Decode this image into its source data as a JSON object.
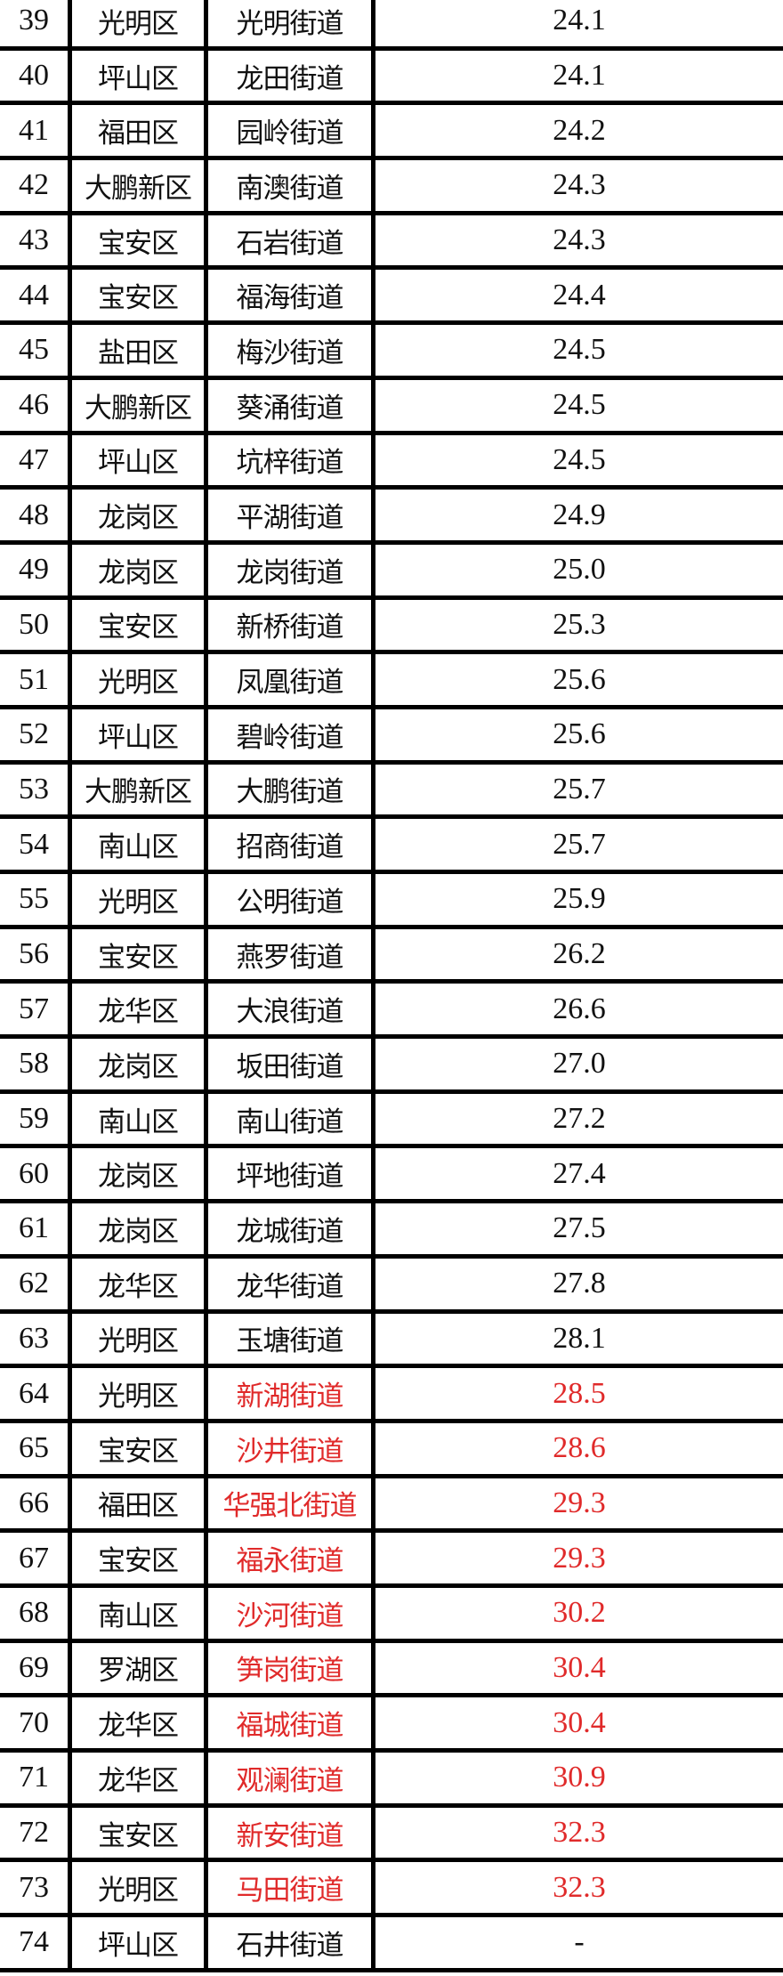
{
  "highlight_color": "#e02a2a",
  "rows": [
    {
      "no": "39",
      "district": "光明区",
      "street": "光明街道",
      "value": "24.1",
      "highlight": false
    },
    {
      "no": "40",
      "district": "坪山区",
      "street": "龙田街道",
      "value": "24.1",
      "highlight": false
    },
    {
      "no": "41",
      "district": "福田区",
      "street": "园岭街道",
      "value": "24.2",
      "highlight": false
    },
    {
      "no": "42",
      "district": "大鹏新区",
      "street": "南澳街道",
      "value": "24.3",
      "highlight": false
    },
    {
      "no": "43",
      "district": "宝安区",
      "street": "石岩街道",
      "value": "24.3",
      "highlight": false
    },
    {
      "no": "44",
      "district": "宝安区",
      "street": "福海街道",
      "value": "24.4",
      "highlight": false
    },
    {
      "no": "45",
      "district": "盐田区",
      "street": "梅沙街道",
      "value": "24.5",
      "highlight": false
    },
    {
      "no": "46",
      "district": "大鹏新区",
      "street": "葵涌街道",
      "value": "24.5",
      "highlight": false
    },
    {
      "no": "47",
      "district": "坪山区",
      "street": "坑梓街道",
      "value": "24.5",
      "highlight": false
    },
    {
      "no": "48",
      "district": "龙岗区",
      "street": "平湖街道",
      "value": "24.9",
      "highlight": false
    },
    {
      "no": "49",
      "district": "龙岗区",
      "street": "龙岗街道",
      "value": "25.0",
      "highlight": false
    },
    {
      "no": "50",
      "district": "宝安区",
      "street": "新桥街道",
      "value": "25.3",
      "highlight": false
    },
    {
      "no": "51",
      "district": "光明区",
      "street": "凤凰街道",
      "value": "25.6",
      "highlight": false
    },
    {
      "no": "52",
      "district": "坪山区",
      "street": "碧岭街道",
      "value": "25.6",
      "highlight": false
    },
    {
      "no": "53",
      "district": "大鹏新区",
      "street": "大鹏街道",
      "value": "25.7",
      "highlight": false
    },
    {
      "no": "54",
      "district": "南山区",
      "street": "招商街道",
      "value": "25.7",
      "highlight": false
    },
    {
      "no": "55",
      "district": "光明区",
      "street": "公明街道",
      "value": "25.9",
      "highlight": false
    },
    {
      "no": "56",
      "district": "宝安区",
      "street": "燕罗街道",
      "value": "26.2",
      "highlight": false
    },
    {
      "no": "57",
      "district": "龙华区",
      "street": "大浪街道",
      "value": "26.6",
      "highlight": false
    },
    {
      "no": "58",
      "district": "龙岗区",
      "street": "坂田街道",
      "value": "27.0",
      "highlight": false
    },
    {
      "no": "59",
      "district": "南山区",
      "street": "南山街道",
      "value": "27.2",
      "highlight": false
    },
    {
      "no": "60",
      "district": "龙岗区",
      "street": "坪地街道",
      "value": "27.4",
      "highlight": false
    },
    {
      "no": "61",
      "district": "龙岗区",
      "street": "龙城街道",
      "value": "27.5",
      "highlight": false
    },
    {
      "no": "62",
      "district": "龙华区",
      "street": "龙华街道",
      "value": "27.8",
      "highlight": false
    },
    {
      "no": "63",
      "district": "光明区",
      "street": "玉塘街道",
      "value": "28.1",
      "highlight": false
    },
    {
      "no": "64",
      "district": "光明区",
      "street": "新湖街道",
      "value": "28.5",
      "highlight": true
    },
    {
      "no": "65",
      "district": "宝安区",
      "street": "沙井街道",
      "value": "28.6",
      "highlight": true
    },
    {
      "no": "66",
      "district": "福田区",
      "street": "华强北街道",
      "value": "29.3",
      "highlight": true
    },
    {
      "no": "67",
      "district": "宝安区",
      "street": "福永街道",
      "value": "29.3",
      "highlight": true
    },
    {
      "no": "68",
      "district": "南山区",
      "street": "沙河街道",
      "value": "30.2",
      "highlight": true
    },
    {
      "no": "69",
      "district": "罗湖区",
      "street": "笋岗街道",
      "value": "30.4",
      "highlight": true
    },
    {
      "no": "70",
      "district": "龙华区",
      "street": "福城街道",
      "value": "30.4",
      "highlight": true
    },
    {
      "no": "71",
      "district": "龙华区",
      "street": "观澜街道",
      "value": "30.9",
      "highlight": true
    },
    {
      "no": "72",
      "district": "宝安区",
      "street": "新安街道",
      "value": "32.3",
      "highlight": true
    },
    {
      "no": "73",
      "district": "光明区",
      "street": "马田街道",
      "value": "32.3",
      "highlight": true
    },
    {
      "no": "74",
      "district": "坪山区",
      "street": "石井街道",
      "value": "-",
      "highlight": false
    }
  ]
}
